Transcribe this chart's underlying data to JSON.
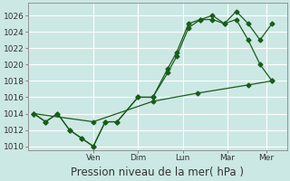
{
  "background_color": "#cce8e4",
  "grid_color": "#ffffff",
  "line_color1": "#1a5c1a",
  "line_color2": "#1a5c1a",
  "line_color3": "#1a5c1a",
  "series1_x": [
    0,
    0.4,
    0.8,
    1.2,
    1.6,
    2.0,
    2.4,
    2.8,
    3.5,
    4.0,
    4.5,
    4.8,
    5.2,
    5.6,
    6.0,
    6.4,
    6.8,
    7.2,
    7.6,
    8.0
  ],
  "series1_y": [
    1014,
    1013,
    1014,
    1012,
    1011,
    1010,
    1013,
    1013,
    1016,
    1016,
    1019,
    1021,
    1024.5,
    1025.5,
    1026,
    1025,
    1026.5,
    1025,
    1023,
    1025
  ],
  "series2_x": [
    0,
    0.4,
    0.8,
    1.2,
    1.6,
    2.0,
    2.4,
    2.8,
    3.5,
    4.0,
    4.5,
    4.8,
    5.2,
    5.6,
    6.0,
    6.4,
    6.8,
    7.2,
    7.6,
    8.0
  ],
  "series2_y": [
    1014,
    1013,
    1014,
    1012,
    1011,
    1010,
    1013,
    1013,
    1016,
    1016,
    1019.5,
    1021.5,
    1025,
    1025.5,
    1025.5,
    1025,
    1025.5,
    1023,
    1020,
    1018
  ],
  "series3_x": [
    0,
    2.0,
    4.0,
    5.5,
    7.2,
    8.0
  ],
  "series3_y": [
    1014,
    1013,
    1015.5,
    1016.5,
    1017.5,
    1018
  ],
  "xtick_positions": [
    2.0,
    3.5,
    5.0,
    6.5,
    7.8
  ],
  "xtick_labels": [
    "Ven",
    "Dim",
    "Lun",
    "Mar",
    "Mer"
  ],
  "xlim": [
    -0.2,
    8.5
  ],
  "ylim": [
    1009.5,
    1027.5
  ],
  "yticks": [
    1010,
    1012,
    1014,
    1016,
    1018,
    1020,
    1022,
    1024,
    1026
  ],
  "xlabel": "Pression niveau de la mer( hPa )",
  "xlabel_fontsize": 8.5,
  "tick_fontsize": 6.5,
  "figsize": [
    3.2,
    2.0
  ],
  "dpi": 100
}
